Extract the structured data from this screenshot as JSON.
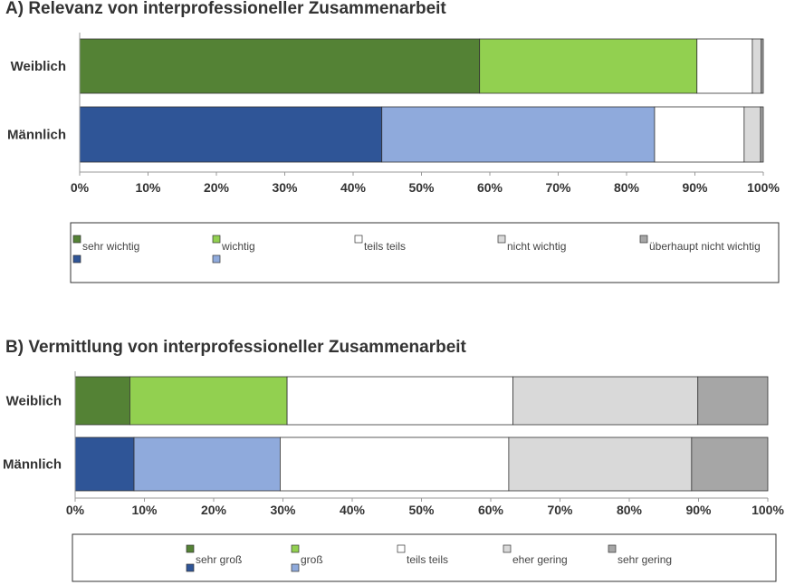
{
  "chart_data": [
    {
      "type": "bar",
      "orientation": "horizontal",
      "stacked": "percent",
      "title": "A) Relevanz von interprofessioneller Zusammenarbeit",
      "categories": [
        "Weiblich",
        "Männlich"
      ],
      "series": [
        {
          "name": "sehr wichtig",
          "values": [
            58.5,
            44.2
          ]
        },
        {
          "name": "wichtig",
          "values": [
            31.8,
            39.9
          ]
        },
        {
          "name": "teils teils",
          "values": [
            8.1,
            13.1
          ]
        },
        {
          "name": "nicht wichtig",
          "values": [
            1.3,
            2.4
          ]
        },
        {
          "name": "überhaupt nicht wichtig",
          "values": [
            0.3,
            0.4
          ]
        }
      ],
      "xticks": [
        "0%",
        "10%",
        "20%",
        "30%",
        "40%",
        "50%",
        "60%",
        "70%",
        "80%",
        "90%",
        "100%"
      ],
      "xlim": [
        0,
        100
      ],
      "legend_position": "bottom",
      "colors": {
        "Weiblich": [
          "#548235",
          "#92D050",
          "#FFFFFF",
          "#D9D9D9",
          "#A6A6A6"
        ],
        "Männlich": [
          "#2F5597",
          "#8FAADC",
          "#FFFFFF",
          "#D9D9D9",
          "#A6A6A6"
        ]
      }
    },
    {
      "type": "bar",
      "orientation": "horizontal",
      "stacked": "percent",
      "title": "B) Vermittlung von interprofessioneller Zusammenarbeit",
      "categories": [
        "Weiblich",
        "Männlich"
      ],
      "series": [
        {
          "name": "sehr groß",
          "values": [
            7.9,
            8.5
          ]
        },
        {
          "name": "groß",
          "values": [
            22.7,
            21.1
          ]
        },
        {
          "name": "teils teils",
          "values": [
            32.6,
            33.0
          ]
        },
        {
          "name": "eher gering",
          "values": [
            26.7,
            26.4
          ]
        },
        {
          "name": "sehr gering",
          "values": [
            10.1,
            11.0
          ]
        }
      ],
      "xticks": [
        "0%",
        "10%",
        "20%",
        "30%",
        "40%",
        "50%",
        "60%",
        "70%",
        "80%",
        "90%",
        "100%"
      ],
      "xlim": [
        0,
        100
      ],
      "legend_position": "bottom",
      "colors": {
        "Weiblich": [
          "#548235",
          "#92D050",
          "#FFFFFF",
          "#D9D9D9",
          "#A6A6A6"
        ],
        "Männlich": [
          "#2F5597",
          "#8FAADC",
          "#FFFFFF",
          "#D9D9D9",
          "#A6A6A6"
        ]
      }
    }
  ]
}
